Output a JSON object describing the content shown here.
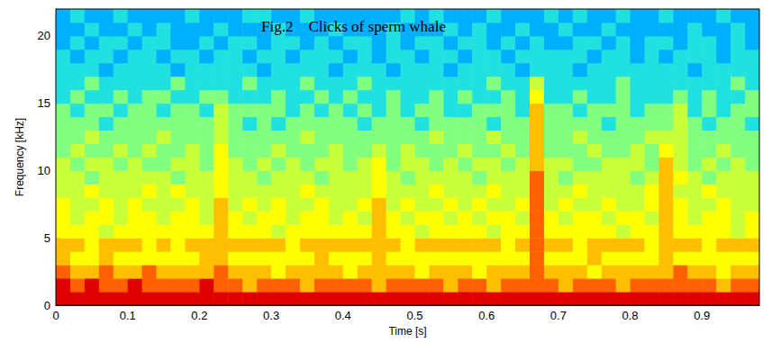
{
  "chart_data": {
    "type": "heatmap",
    "title": "Fig.2    Clicks of sperm whale",
    "x_label": "Time [s]",
    "y_label": "Frequency [kHz]",
    "xlim": [
      0,
      0.98
    ],
    "xticks": [
      0,
      0.1,
      0.2,
      0.3,
      0.4,
      0.5,
      0.6,
      0.7,
      0.8,
      0.9
    ],
    "ylim": [
      0,
      22
    ],
    "yticks": [
      0,
      5,
      10,
      15,
      20
    ],
    "x_bins": [
      0,
      0.02,
      0.04,
      0.06,
      0.08,
      0.1,
      0.12,
      0.14,
      0.16,
      0.18,
      0.2,
      0.22,
      0.24,
      0.26,
      0.28,
      0.3,
      0.32,
      0.34,
      0.36,
      0.38,
      0.4,
      0.42,
      0.44,
      0.46,
      0.48,
      0.5,
      0.52,
      0.54,
      0.56,
      0.58,
      0.6,
      0.62,
      0.64,
      0.66,
      0.68,
      0.7,
      0.72,
      0.74,
      0.76,
      0.78,
      0.8,
      0.82,
      0.84,
      0.86,
      0.88,
      0.9,
      0.92,
      0.94,
      0.96,
      0.98
    ],
    "y_bins": [
      0,
      1,
      2,
      3,
      4,
      5,
      6,
      7,
      8,
      9,
      10,
      11,
      12,
      13,
      14,
      15,
      16,
      17,
      18,
      19,
      20,
      21,
      22
    ],
    "zlim": [
      0,
      9
    ],
    "cells": [
      [
        9,
        9,
        9,
        9,
        9,
        9,
        9,
        9,
        9,
        9,
        9,
        9,
        9,
        9,
        9,
        9,
        9,
        9,
        9,
        9,
        9,
        9,
        9,
        9,
        9,
        9,
        9,
        9,
        9,
        9,
        9,
        9,
        9,
        9,
        9,
        9,
        9,
        9,
        9,
        9,
        9,
        9,
        9,
        9,
        9,
        9,
        9,
        9,
        9
      ],
      [
        9,
        8,
        9,
        8,
        8,
        9,
        8,
        8,
        8,
        8,
        9,
        8,
        8,
        7,
        8,
        8,
        8,
        7,
        8,
        8,
        8,
        8,
        7,
        8,
        8,
        8,
        8,
        7,
        8,
        8,
        7,
        8,
        8,
        8,
        8,
        7,
        8,
        8,
        8,
        7,
        8,
        8,
        8,
        8,
        8,
        8,
        7,
        8,
        8
      ],
      [
        8,
        7,
        7,
        8,
        7,
        7,
        8,
        7,
        7,
        7,
        7,
        8,
        7,
        7,
        7,
        6,
        7,
        7,
        7,
        7,
        6,
        7,
        7,
        7,
        7,
        6,
        7,
        7,
        7,
        6,
        7,
        7,
        7,
        8,
        7,
        7,
        7,
        6,
        7,
        7,
        7,
        7,
        7,
        8,
        7,
        7,
        6,
        7,
        7
      ],
      [
        7,
        6,
        6,
        7,
        6,
        6,
        6,
        6,
        6,
        6,
        7,
        7,
        6,
        6,
        6,
        6,
        6,
        6,
        7,
        6,
        6,
        6,
        7,
        6,
        6,
        6,
        6,
        6,
        6,
        6,
        6,
        6,
        6,
        8,
        6,
        6,
        6,
        7,
        6,
        6,
        6,
        6,
        7,
        6,
        6,
        6,
        6,
        6,
        6
      ],
      [
        7,
        7,
        6,
        7,
        7,
        7,
        6,
        7,
        6,
        7,
        7,
        7,
        7,
        7,
        7,
        7,
        6,
        7,
        7,
        7,
        7,
        7,
        7,
        7,
        6,
        7,
        7,
        7,
        7,
        7,
        7,
        6,
        7,
        8,
        7,
        7,
        6,
        7,
        7,
        7,
        7,
        6,
        7,
        7,
        7,
        6,
        7,
        7,
        7
      ],
      [
        6,
        6,
        6,
        5,
        6,
        6,
        6,
        6,
        6,
        6,
        6,
        7,
        6,
        6,
        6,
        5,
        6,
        6,
        6,
        6,
        6,
        6,
        7,
        6,
        6,
        5,
        6,
        6,
        6,
        6,
        5,
        6,
        6,
        8,
        6,
        6,
        6,
        6,
        6,
        5,
        6,
        6,
        7,
        6,
        6,
        6,
        6,
        5,
        6
      ],
      [
        6,
        5,
        6,
        6,
        5,
        6,
        6,
        5,
        6,
        6,
        5,
        7,
        6,
        5,
        6,
        6,
        5,
        6,
        6,
        5,
        6,
        5,
        7,
        6,
        5,
        6,
        6,
        5,
        6,
        5,
        6,
        6,
        5,
        8,
        6,
        5,
        6,
        6,
        5,
        6,
        6,
        5,
        7,
        6,
        5,
        6,
        6,
        5,
        6
      ],
      [
        6,
        5,
        5,
        6,
        5,
        6,
        5,
        5,
        5,
        6,
        5,
        7,
        5,
        6,
        5,
        6,
        5,
        5,
        6,
        5,
        5,
        6,
        7,
        5,
        6,
        5,
        5,
        6,
        5,
        6,
        5,
        5,
        6,
        8,
        5,
        6,
        5,
        5,
        6,
        5,
        5,
        6,
        7,
        6,
        5,
        5,
        6,
        5,
        5
      ],
      [
        5,
        5,
        6,
        5,
        5,
        5,
        6,
        5,
        6,
        5,
        5,
        6,
        5,
        5,
        5,
        5,
        5,
        6,
        5,
        5,
        5,
        5,
        6,
        5,
        5,
        5,
        6,
        5,
        5,
        5,
        6,
        5,
        5,
        8,
        5,
        5,
        6,
        5,
        5,
        5,
        5,
        6,
        7,
        5,
        5,
        6,
        5,
        5,
        5
      ],
      [
        5,
        5,
        4,
        5,
        5,
        5,
        5,
        5,
        4,
        5,
        5,
        6,
        5,
        5,
        4,
        5,
        5,
        5,
        4,
        5,
        5,
        5,
        6,
        5,
        4,
        5,
        5,
        5,
        5,
        4,
        5,
        5,
        5,
        8,
        5,
        4,
        5,
        5,
        5,
        5,
        4,
        5,
        7,
        6,
        5,
        4,
        5,
        5,
        5
      ],
      [
        5,
        4,
        5,
        5,
        4,
        5,
        4,
        4,
        5,
        5,
        4,
        6,
        5,
        4,
        5,
        4,
        5,
        4,
        5,
        5,
        4,
        5,
        6,
        4,
        5,
        5,
        4,
        5,
        4,
        5,
        5,
        4,
        5,
        7,
        5,
        5,
        4,
        4,
        5,
        5,
        5,
        4,
        7,
        5,
        4,
        5,
        4,
        5,
        4
      ],
      [
        4,
        5,
        4,
        4,
        5,
        4,
        5,
        4,
        4,
        5,
        4,
        6,
        4,
        4,
        4,
        5,
        4,
        4,
        4,
        5,
        4,
        4,
        5,
        4,
        5,
        4,
        4,
        4,
        5,
        4,
        4,
        5,
        4,
        7,
        4,
        4,
        4,
        5,
        4,
        4,
        5,
        4,
        6,
        5,
        4,
        4,
        5,
        4,
        4
      ],
      [
        4,
        4,
        5,
        4,
        4,
        4,
        4,
        5,
        4,
        4,
        4,
        5,
        4,
        4,
        4,
        4,
        4,
        5,
        4,
        4,
        4,
        4,
        4,
        4,
        4,
        4,
        5,
        4,
        4,
        4,
        5,
        4,
        4,
        7,
        4,
        4,
        5,
        4,
        4,
        4,
        4,
        5,
        5,
        5,
        4,
        4,
        4,
        4,
        4
      ],
      [
        4,
        4,
        4,
        3,
        4,
        4,
        4,
        4,
        4,
        4,
        4,
        5,
        4,
        3,
        4,
        3,
        4,
        4,
        4,
        4,
        4,
        3,
        4,
        4,
        4,
        3,
        4,
        4,
        4,
        4,
        3,
        4,
        4,
        7,
        4,
        4,
        4,
        4,
        3,
        4,
        4,
        4,
        4,
        5,
        4,
        3,
        4,
        4,
        3
      ],
      [
        4,
        3,
        4,
        4,
        3,
        4,
        4,
        3,
        4,
        4,
        3,
        5,
        4,
        4,
        4,
        4,
        3,
        4,
        3,
        4,
        3,
        4,
        3,
        4,
        3,
        4,
        4,
        3,
        3,
        4,
        4,
        4,
        3,
        7,
        4,
        4,
        3,
        4,
        4,
        4,
        3,
        4,
        4,
        5,
        3,
        4,
        3,
        4,
        4
      ],
      [
        3,
        4,
        3,
        3,
        4,
        3,
        4,
        4,
        3,
        3,
        4,
        4,
        3,
        3,
        3,
        4,
        3,
        3,
        4,
        3,
        4,
        3,
        3,
        4,
        3,
        3,
        4,
        3,
        4,
        3,
        3,
        4,
        3,
        6,
        3,
        3,
        4,
        3,
        3,
        4,
        3,
        3,
        3,
        4,
        3,
        4,
        3,
        3,
        4
      ],
      [
        3,
        3,
        4,
        3,
        3,
        3,
        3,
        3,
        4,
        3,
        3,
        3,
        3,
        4,
        3,
        3,
        3,
        4,
        3,
        3,
        3,
        4,
        3,
        3,
        3,
        3,
        3,
        3,
        3,
        3,
        4,
        3,
        3,
        5,
        3,
        3,
        3,
        3,
        3,
        4,
        3,
        3,
        3,
        3,
        3,
        3,
        3,
        4,
        3
      ],
      [
        3,
        3,
        3,
        2,
        3,
        3,
        3,
        3,
        2,
        3,
        3,
        3,
        3,
        3,
        2,
        3,
        3,
        3,
        3,
        2,
        3,
        3,
        3,
        2,
        3,
        3,
        3,
        2,
        3,
        3,
        3,
        3,
        2,
        3,
        3,
        3,
        2,
        3,
        3,
        3,
        3,
        3,
        3,
        3,
        2,
        3,
        3,
        3,
        3
      ],
      [
        3,
        2,
        3,
        3,
        2,
        3,
        3,
        2,
        3,
        3,
        2,
        3,
        3,
        2,
        3,
        3,
        2,
        3,
        3,
        3,
        2,
        3,
        2,
        3,
        3,
        2,
        3,
        3,
        2,
        3,
        3,
        2,
        3,
        3,
        3,
        3,
        3,
        2,
        3,
        3,
        2,
        3,
        2,
        3,
        3,
        3,
        2,
        3,
        3
      ],
      [
        2,
        3,
        2,
        3,
        3,
        2,
        3,
        3,
        2,
        2,
        3,
        2,
        3,
        3,
        2,
        3,
        3,
        2,
        3,
        2,
        3,
        3,
        2,
        3,
        2,
        3,
        3,
        2,
        3,
        3,
        2,
        3,
        2,
        3,
        2,
        2,
        3,
        3,
        2,
        3,
        2,
        3,
        3,
        2,
        3,
        3,
        2,
        3,
        2
      ],
      [
        2,
        2,
        3,
        2,
        2,
        3,
        2,
        3,
        2,
        2,
        2,
        3,
        2,
        2,
        2,
        3,
        2,
        2,
        2,
        3,
        2,
        2,
        2,
        3,
        2,
        2,
        2,
        3,
        2,
        3,
        2,
        2,
        3,
        2,
        2,
        3,
        2,
        2,
        3,
        2,
        2,
        2,
        2,
        2,
        3,
        2,
        2,
        3,
        2
      ],
      [
        2,
        3,
        2,
        2,
        3,
        2,
        2,
        2,
        2,
        3,
        2,
        2,
        2,
        3,
        3,
        2,
        2,
        3,
        2,
        2,
        2,
        2,
        2,
        2,
        3,
        2,
        3,
        2,
        2,
        2,
        3,
        2,
        2,
        2,
        3,
        2,
        3,
        2,
        2,
        3,
        2,
        2,
        3,
        2,
        2,
        2,
        3,
        2,
        2
      ]
    ]
  }
}
